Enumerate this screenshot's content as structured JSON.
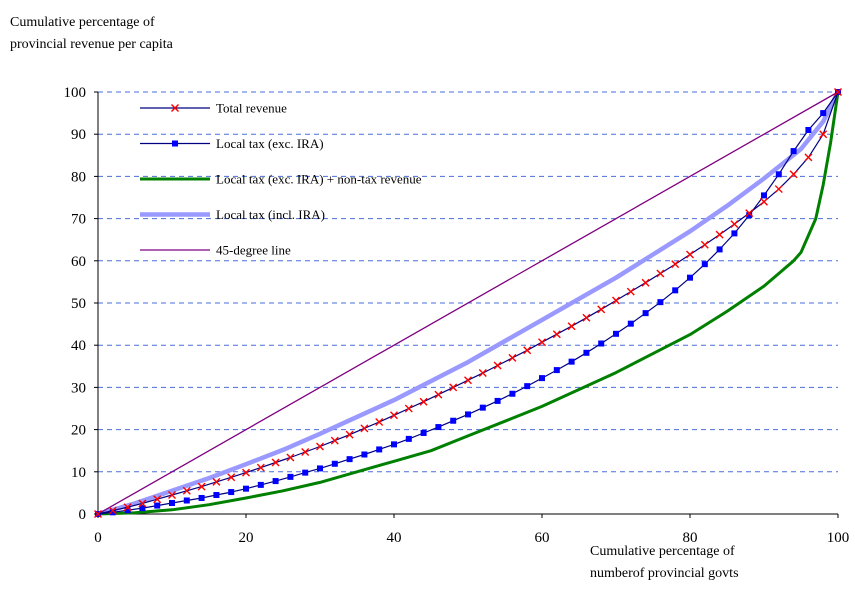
{
  "chart_data": {
    "type": "line",
    "ylabel_lines": [
      "Cumulative percentage of",
      "provincial revenue per capita"
    ],
    "xlabel_lines": [
      "Cumulative percentage of",
      "numberof provincial govts"
    ],
    "xlim": [
      0,
      100
    ],
    "ylim": [
      0,
      100
    ],
    "x_ticks": [
      0,
      20,
      40,
      60,
      80,
      100
    ],
    "y_ticks": [
      0,
      10,
      20,
      30,
      40,
      50,
      60,
      70,
      80,
      90,
      100
    ],
    "grid": "horizontal dashed",
    "legend_position": "top-left",
    "series": [
      {
        "name": "Total revenue",
        "color": "#ff0000",
        "line_color": "#000080",
        "marker": "x",
        "x": [
          0,
          2,
          4,
          6,
          8,
          10,
          12,
          14,
          16,
          18,
          20,
          22,
          24,
          26,
          28,
          30,
          32,
          34,
          36,
          38,
          40,
          42,
          44,
          46,
          48,
          50,
          52,
          54,
          56,
          58,
          60,
          62,
          64,
          66,
          68,
          70,
          72,
          74,
          76,
          78,
          80,
          82,
          84,
          86,
          88,
          90,
          92,
          94,
          96,
          98,
          100
        ],
        "y": [
          0,
          0.8,
          1.6,
          2.5,
          3.5,
          4.5,
          5.5,
          6.5,
          7.6,
          8.7,
          9.8,
          11,
          12.2,
          13.4,
          14.7,
          16,
          17.4,
          18.8,
          20.3,
          21.8,
          23.4,
          25,
          26.6,
          28.3,
          30,
          31.7,
          33.4,
          35.2,
          37,
          38.8,
          40.7,
          42.6,
          44.5,
          46.5,
          48.5,
          50.6,
          52.7,
          54.8,
          57,
          59.2,
          61.5,
          63.8,
          66.2,
          68.7,
          71.3,
          74,
          77,
          80.5,
          84.5,
          90,
          100
        ]
      },
      {
        "name": "Local tax (exc. IRA)",
        "color": "#0000ff",
        "line_color": "#000080",
        "marker": "square",
        "x": [
          0,
          2,
          4,
          6,
          8,
          10,
          12,
          14,
          16,
          18,
          20,
          22,
          24,
          26,
          28,
          30,
          32,
          34,
          36,
          38,
          40,
          42,
          44,
          46,
          48,
          50,
          52,
          54,
          56,
          58,
          60,
          62,
          64,
          66,
          68,
          70,
          72,
          74,
          76,
          78,
          80,
          82,
          84,
          86,
          88,
          90,
          92,
          94,
          96,
          98,
          100
        ],
        "y": [
          0,
          0.4,
          0.9,
          1.4,
          2,
          2.6,
          3.2,
          3.8,
          4.5,
          5.2,
          6,
          6.9,
          7.8,
          8.8,
          9.8,
          10.8,
          11.9,
          13,
          14.1,
          15.3,
          16.5,
          17.8,
          19.2,
          20.6,
          22.1,
          23.6,
          25.2,
          26.8,
          28.5,
          30.3,
          32.2,
          34.1,
          36.1,
          38.2,
          40.4,
          42.7,
          45.1,
          47.6,
          50.2,
          53,
          56,
          59.2,
          62.7,
          66.5,
          70.8,
          75.5,
          80.5,
          86,
          91,
          95,
          100
        ]
      },
      {
        "name": "Local tax (exc. IRA) + non-tax revenue",
        "color": "#008000",
        "marker": "none",
        "x": [
          0,
          5,
          10,
          15,
          20,
          25,
          30,
          35,
          40,
          45,
          50,
          55,
          60,
          65,
          70,
          75,
          80,
          85,
          90,
          92,
          94,
          95,
          96,
          97,
          98,
          99,
          100
        ],
        "y": [
          0,
          0.3,
          1,
          2.2,
          3.8,
          5.5,
          7.5,
          10,
          12.5,
          15,
          18.5,
          22,
          25.5,
          29.5,
          33.5,
          38,
          42.5,
          48,
          54,
          57,
          60,
          62,
          66,
          70,
          78,
          88,
          100
        ]
      },
      {
        "name": "Local tax (incl. IRA)",
        "color": "#9999ff",
        "marker": "none",
        "x": [
          0,
          5,
          10,
          15,
          20,
          25,
          30,
          35,
          40,
          45,
          50,
          55,
          60,
          65,
          70,
          75,
          80,
          85,
          90,
          95,
          98,
          100
        ],
        "y": [
          0,
          2.5,
          5.5,
          8.5,
          11.8,
          15.2,
          19,
          23,
          27,
          31.5,
          36,
          41,
          46,
          51,
          56,
          61.5,
          67,
          73,
          79.5,
          86.5,
          93,
          100
        ]
      },
      {
        "name": "45-degree line",
        "color": "#800080",
        "marker": "none",
        "x": [
          0,
          100
        ],
        "y": [
          0,
          100
        ]
      }
    ]
  }
}
